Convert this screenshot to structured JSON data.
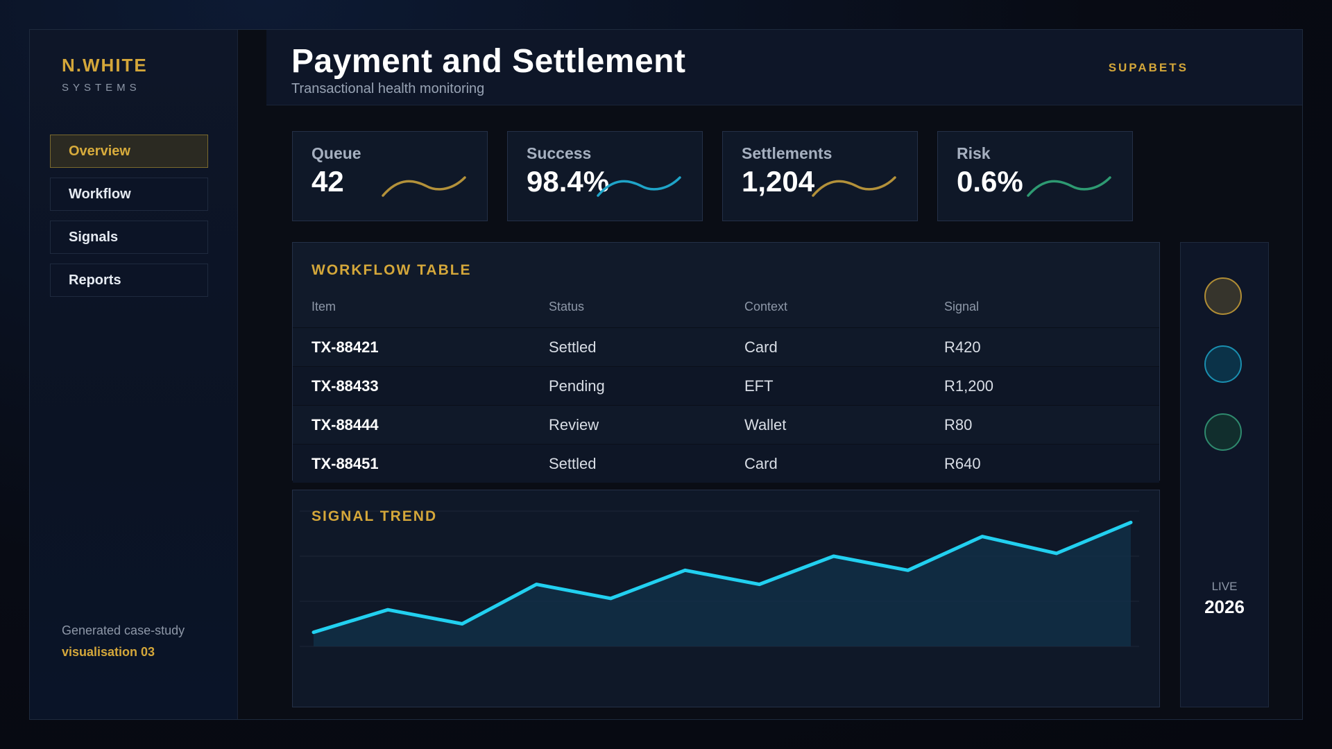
{
  "brand": {
    "name": "N.WHITE",
    "sub": "SYSTEMS"
  },
  "nav": [
    {
      "label": "Overview",
      "active": true
    },
    {
      "label": "Workflow",
      "active": false
    },
    {
      "label": "Signals",
      "active": false
    },
    {
      "label": "Reports",
      "active": false
    }
  ],
  "footer": {
    "line1": "Generated case-study",
    "line2": "visualisation 03"
  },
  "header": {
    "title": "Payment and Settlement",
    "subtitle": "Transactional health monitoring",
    "brand_right": "SUPABETS"
  },
  "kpis": [
    {
      "label": "Queue",
      "value": "42",
      "color": "#b3913a"
    },
    {
      "label": "Success",
      "value": "98.4%",
      "color": "#1fa4c8"
    },
    {
      "label": "Settlements",
      "value": "1,204",
      "color": "#b3913a"
    },
    {
      "label": "Risk",
      "value": "0.6%",
      "color": "#2e9a72"
    }
  ],
  "workflow": {
    "title": "WORKFLOW TABLE",
    "columns": [
      "Item",
      "Status",
      "Context",
      "Signal"
    ],
    "rows": [
      [
        "TX-88421",
        "Settled",
        "Card",
        "R420"
      ],
      [
        "TX-88433",
        "Pending",
        "EFT",
        "R1,200"
      ],
      [
        "TX-88444",
        "Review",
        "Wallet",
        "R80"
      ],
      [
        "TX-88451",
        "Settled",
        "Card",
        "R640"
      ]
    ]
  },
  "signal_trend": {
    "title": "SIGNAL TREND",
    "line_color": "#22d0f0"
  },
  "chart_data": {
    "type": "area",
    "title": "SIGNAL TREND",
    "x": [
      1,
      2,
      3,
      4,
      5,
      6,
      7,
      8,
      9,
      10,
      11,
      12
    ],
    "values": [
      5,
      13,
      8,
      22,
      17,
      27,
      22,
      32,
      27,
      39,
      33,
      44
    ],
    "ylim": [
      0,
      48
    ],
    "grid": true
  },
  "rail": {
    "live_label": "LIVE",
    "year": "2026"
  }
}
